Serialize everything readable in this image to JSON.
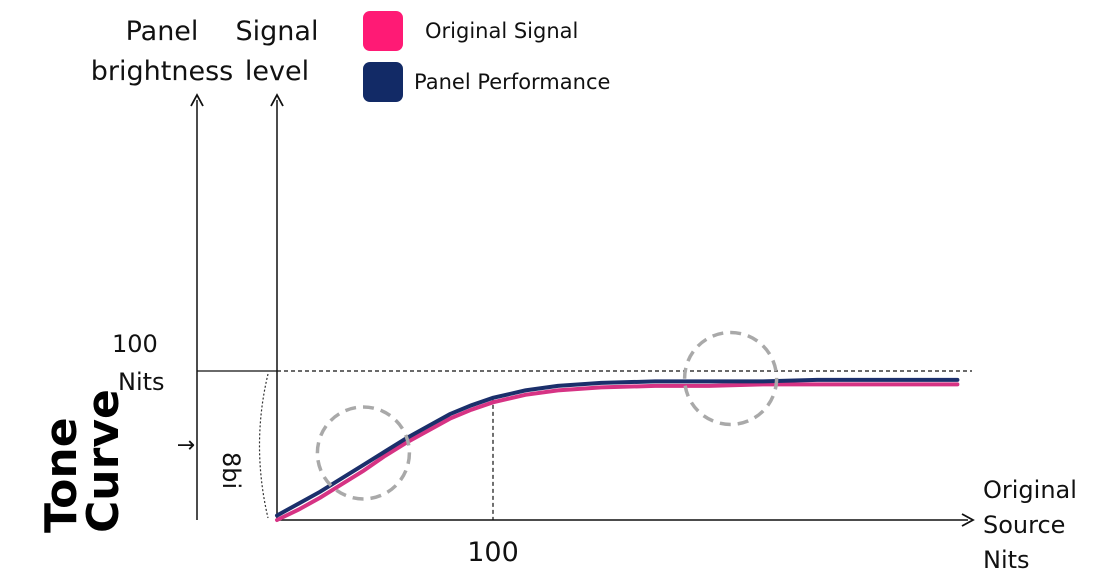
{
  "chart_data": {
    "type": "line",
    "side_title_lines": [
      "Tone",
      "Curve"
    ],
    "y_axis_left_label_lines": [
      "Panel",
      "brightness"
    ],
    "y_axis_signal_label_lines": [
      "Signal",
      "level"
    ],
    "x_axis_label_lines": [
      "Original",
      "Source",
      "Nits"
    ],
    "x_tick_label": "100",
    "y_tick_label_lines": [
      "100",
      "Nits"
    ],
    "bits_label": "8bi",
    "bits_arrow_glyph": "↑",
    "xlim": [
      0,
      320
    ],
    "ylim": [
      0,
      160
    ],
    "series": [
      {
        "name": "Original Signal",
        "color": "#d63384",
        "points": [
          [
            0,
            0
          ],
          [
            10,
            7
          ],
          [
            20,
            15
          ],
          [
            30,
            24
          ],
          [
            40,
            33
          ],
          [
            50,
            43
          ],
          [
            60,
            52
          ],
          [
            70,
            60
          ],
          [
            80,
            68
          ],
          [
            90,
            74
          ],
          [
            100,
            79
          ],
          [
            115,
            84
          ],
          [
            130,
            87
          ],
          [
            150,
            89
          ],
          [
            175,
            90
          ],
          [
            200,
            90
          ],
          [
            225,
            91
          ],
          [
            250,
            91
          ],
          [
            275,
            91
          ],
          [
            300,
            91
          ],
          [
            315,
            91
          ]
        ]
      },
      {
        "name": "Panel Performance",
        "color": "#1b2f6b",
        "points": [
          [
            0,
            3
          ],
          [
            10,
            11
          ],
          [
            20,
            19
          ],
          [
            30,
            28
          ],
          [
            40,
            37
          ],
          [
            50,
            46
          ],
          [
            60,
            55
          ],
          [
            70,
            63
          ],
          [
            80,
            71
          ],
          [
            90,
            77
          ],
          [
            100,
            82
          ],
          [
            115,
            87
          ],
          [
            130,
            90
          ],
          [
            150,
            92
          ],
          [
            175,
            93
          ],
          [
            200,
            93
          ],
          [
            225,
            93
          ],
          [
            250,
            94
          ],
          [
            275,
            94
          ],
          [
            300,
            94
          ],
          [
            315,
            94
          ]
        ]
      }
    ],
    "reference_lines": {
      "x": 100,
      "y": 100
    },
    "highlight_circles_at": [
      [
        40,
        45
      ],
      [
        210,
        95
      ]
    ],
    "legend": [
      {
        "label": "Original Signal",
        "color": "#ff1a75"
      },
      {
        "label": "Panel Performance",
        "color": "#122a66"
      }
    ],
    "legend_position": "top-center",
    "grid": false
  }
}
